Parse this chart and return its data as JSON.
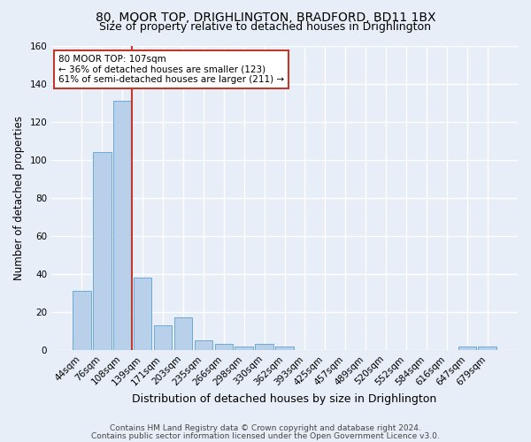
{
  "title_line1": "80, MOOR TOP, DRIGHLINGTON, BRADFORD, BD11 1BX",
  "title_line2": "Size of property relative to detached houses in Drighlington",
  "xlabel": "Distribution of detached houses by size in Drighlington",
  "ylabel": "Number of detached properties",
  "categories": [
    "44sqm",
    "76sqm",
    "108sqm",
    "139sqm",
    "171sqm",
    "203sqm",
    "235sqm",
    "266sqm",
    "298sqm",
    "330sqm",
    "362sqm",
    "393sqm",
    "425sqm",
    "457sqm",
    "489sqm",
    "520sqm",
    "552sqm",
    "584sqm",
    "616sqm",
    "647sqm",
    "679sqm"
  ],
  "values": [
    31,
    104,
    131,
    38,
    13,
    17,
    5,
    3,
    2,
    3,
    2,
    0,
    0,
    0,
    0,
    0,
    0,
    0,
    0,
    2,
    2
  ],
  "bar_color": "#b8d0ea",
  "bar_edge_color": "#6aaad4",
  "bar_linewidth": 0.7,
  "vline_x_idx": 2,
  "vline_color": "#c0392b",
  "vline_linewidth": 1.5,
  "annotation_text": "80 MOOR TOP: 107sqm\n← 36% of detached houses are smaller (123)\n61% of semi-detached houses are larger (211) →",
  "annotation_box_color": "white",
  "annotation_box_edge": "#c0392b",
  "ylim": [
    0,
    160
  ],
  "yticks": [
    0,
    20,
    40,
    60,
    80,
    100,
    120,
    140,
    160
  ],
  "bg_color": "#e8eef7",
  "plot_bg_color": "#e8eef7",
  "grid_color": "white",
  "footer_line1": "Contains HM Land Registry data © Crown copyright and database right 2024.",
  "footer_line2": "Contains public sector information licensed under the Open Government Licence v3.0.",
  "title_fontsize": 10,
  "subtitle_fontsize": 9,
  "xlabel_fontsize": 9,
  "ylabel_fontsize": 8.5,
  "tick_fontsize": 7.5,
  "annot_fontsize": 7.5,
  "footer_fontsize": 6.5
}
